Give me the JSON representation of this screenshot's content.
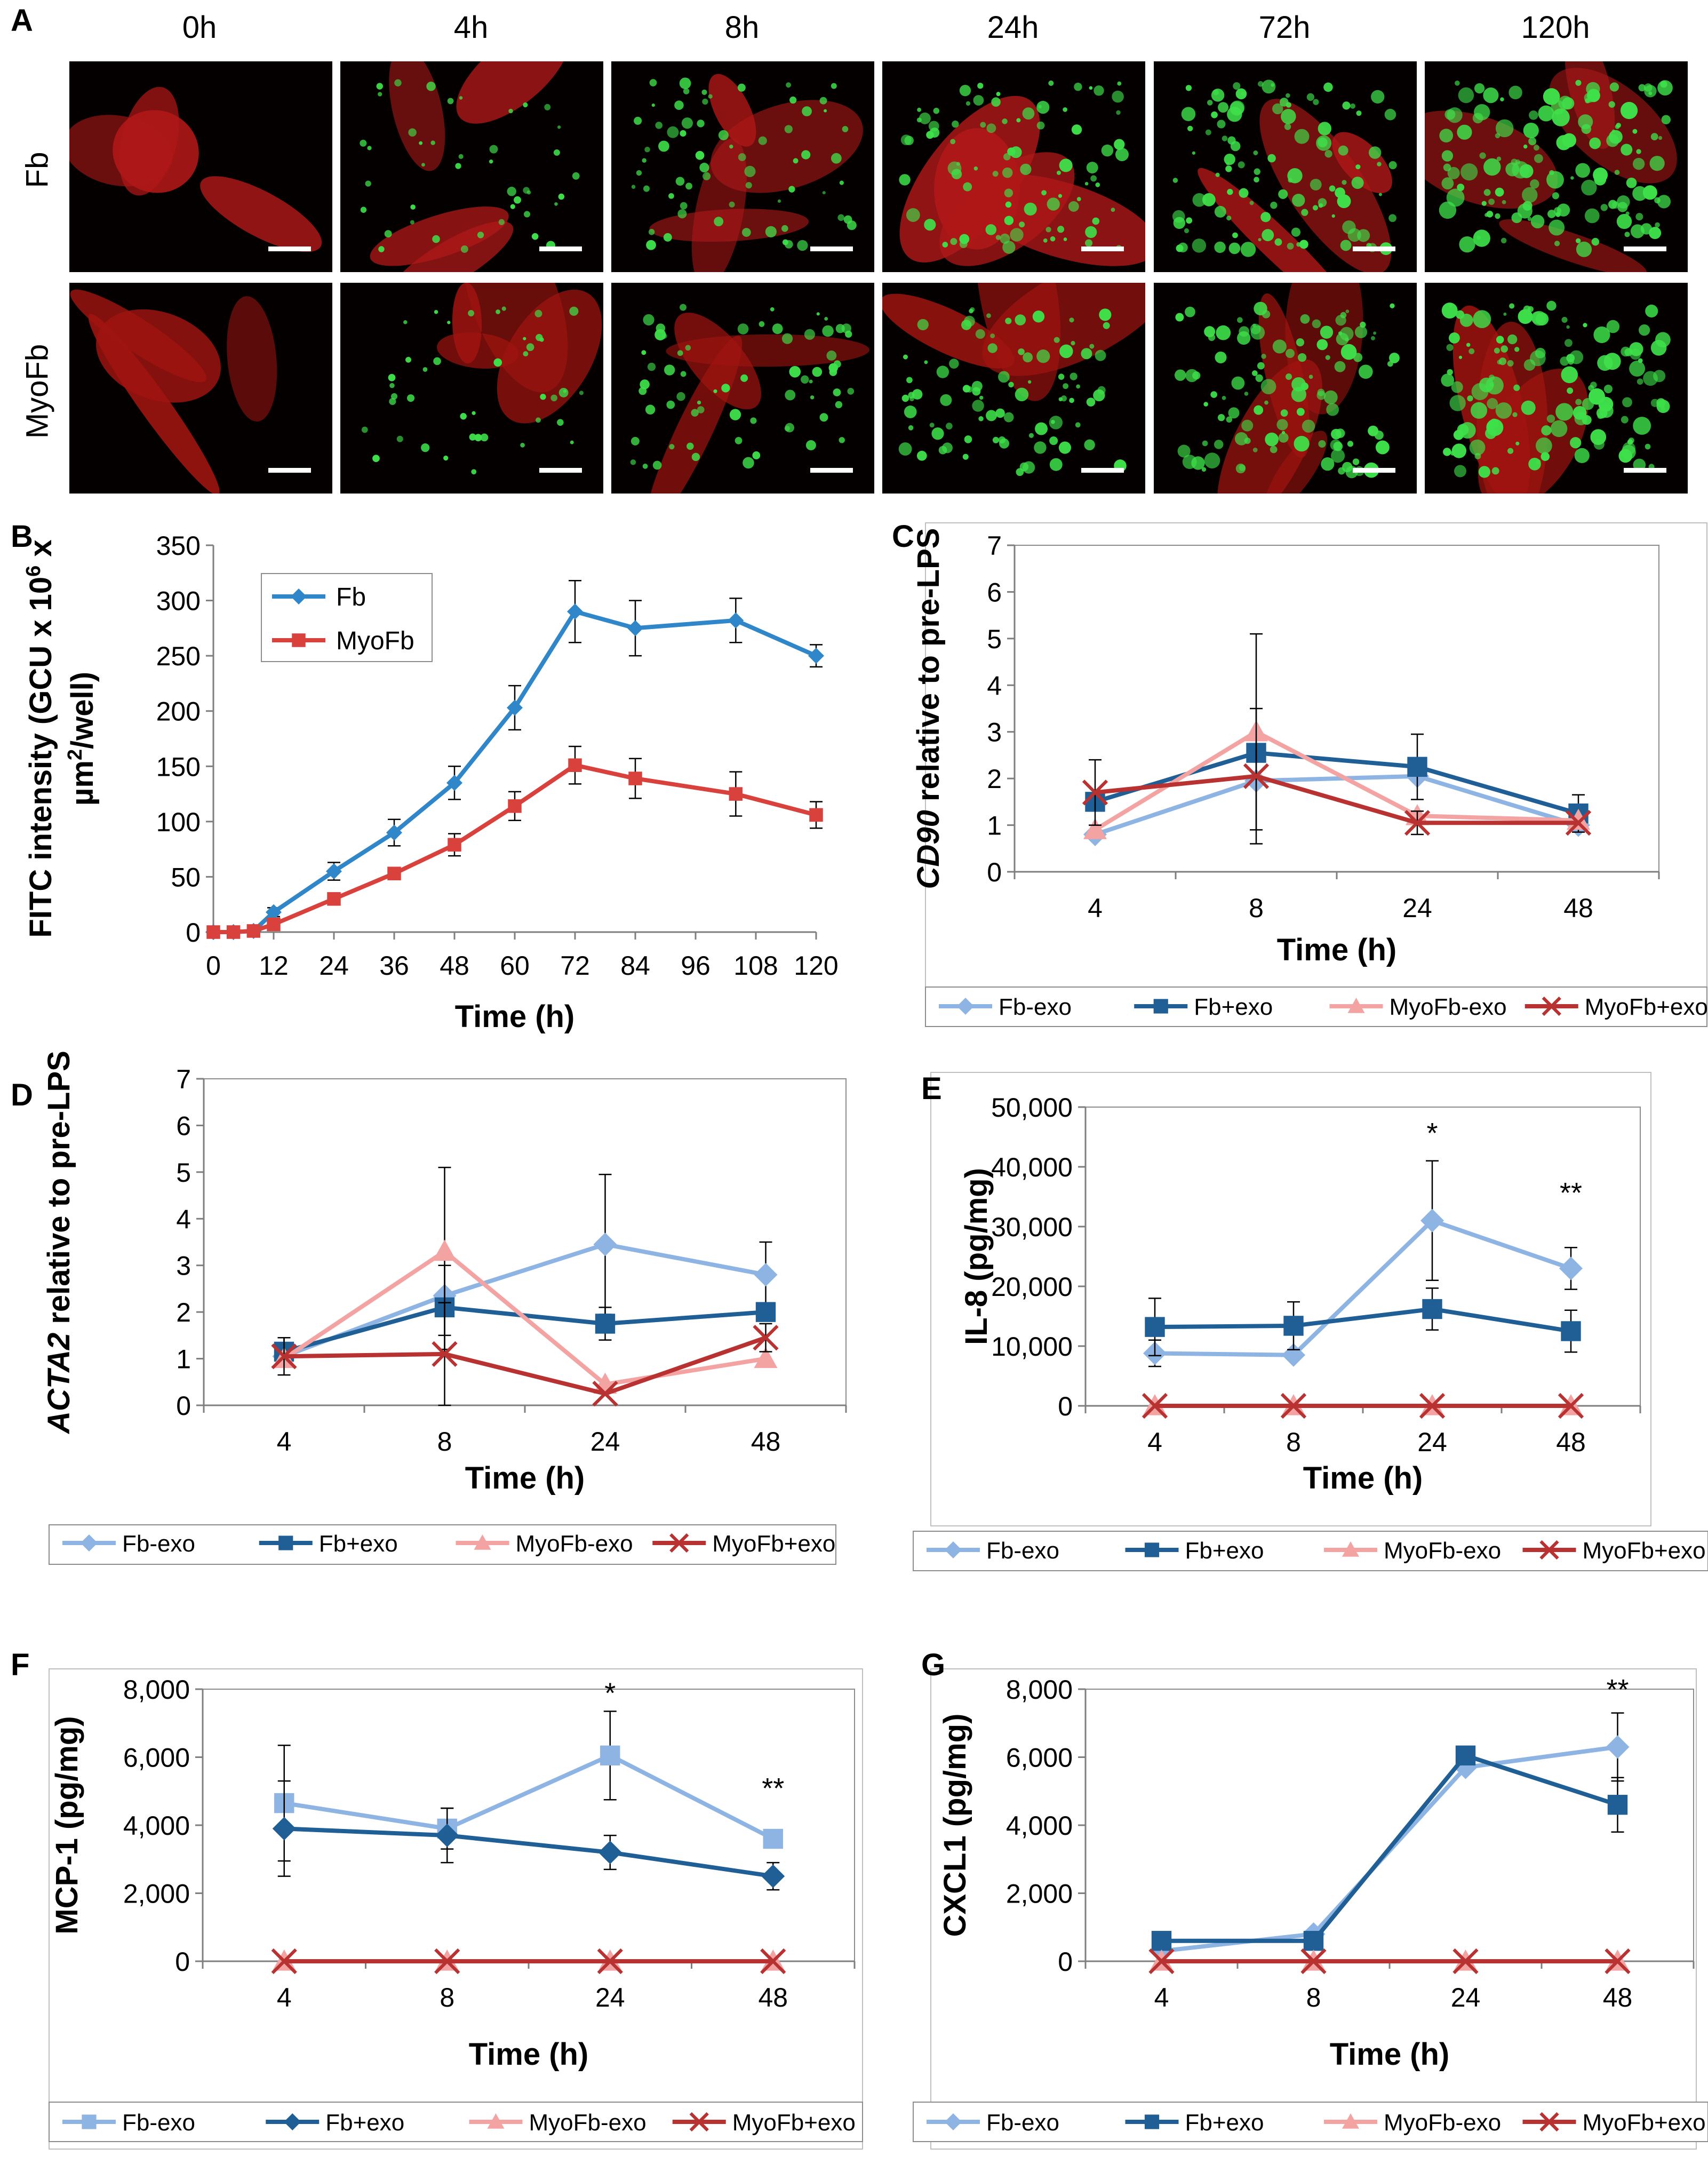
{
  "panelA": {
    "label": "A",
    "times": [
      "0h",
      "4h",
      "8h",
      "24h",
      "72h",
      "120h"
    ],
    "rows": [
      "Fb",
      "MyoFb"
    ]
  },
  "chart_data": [
    {
      "id": "B",
      "label": "B",
      "type": "line",
      "ylabel_parts": [
        "FITC intensity (GCU x 10",
        "6",
        " x",
        "µm",
        "2",
        "/well)"
      ],
      "xlabel": "Time (h)",
      "xaxis": "numeric",
      "x_ticks": [
        0,
        12,
        24,
        36,
        48,
        60,
        72,
        84,
        96,
        108,
        120
      ],
      "x_tick_labels": [
        "0",
        "12",
        "24",
        "36",
        "48",
        "60",
        "72",
        "84",
        "96",
        "108",
        "120"
      ],
      "ylim": [
        0,
        350
      ],
      "y_ticks": [
        0,
        50,
        100,
        150,
        200,
        250,
        300,
        350
      ],
      "y_tick_labels": [
        "0",
        "50",
        "100",
        "150",
        "200",
        "250",
        "300",
        "350"
      ],
      "legend_position": "inside-top-left",
      "series": [
        {
          "name": "Fb",
          "color": "#2f86c8",
          "marker": "diamond",
          "x": [
            0,
            4,
            8,
            12,
            24,
            36,
            48,
            60,
            72,
            84,
            104,
            120
          ],
          "y": [
            0,
            0,
            1,
            18,
            55,
            90,
            135,
            203,
            290,
            275,
            282,
            250
          ],
          "err": [
            0,
            0,
            2,
            4,
            8,
            12,
            15,
            20,
            28,
            25,
            20,
            10
          ]
        },
        {
          "name": "MyoFb",
          "color": "#d9413d",
          "marker": "square",
          "x": [
            0,
            4,
            8,
            12,
            24,
            36,
            48,
            60,
            72,
            84,
            104,
            120
          ],
          "y": [
            0,
            0,
            1,
            7,
            30,
            53,
            79,
            114,
            151,
            139,
            125,
            106
          ],
          "err": [
            0,
            0,
            2,
            3,
            5,
            5,
            10,
            13,
            17,
            18,
            20,
            12
          ]
        }
      ]
    },
    {
      "id": "C",
      "label": "C",
      "type": "line",
      "ylabel_parts": [
        "CD90",
        " relative to pre-LPS"
      ],
      "ylabel_italic_first": true,
      "xlabel": "Time (h)",
      "xaxis": "category",
      "categories": [
        "4",
        "8",
        "24",
        "48"
      ],
      "ylim": [
        0,
        7
      ],
      "y_ticks": [
        0,
        1,
        2,
        3,
        4,
        5,
        6,
        7
      ],
      "y_tick_labels": [
        "0",
        "1",
        "2",
        "3",
        "4",
        "5",
        "6",
        "7"
      ],
      "legend_position": "bottom",
      "series": [
        {
          "name": "Fb-exo",
          "color": "#8db4e2",
          "marker": "diamond",
          "y": [
            0.8,
            1.95,
            2.05,
            1.0
          ],
          "err": [
            0,
            0,
            0,
            0
          ]
        },
        {
          "name": "Fb+exo",
          "color": "#1f5f96",
          "marker": "square",
          "y": [
            1.5,
            2.55,
            2.25,
            1.25
          ],
          "err": [
            0,
            0,
            0.7,
            0.4
          ]
        },
        {
          "name": "MyoFb-exo",
          "color": "#f4a3a3",
          "marker": "triangle",
          "y": [
            0.9,
            3.0,
            1.2,
            1.1
          ],
          "err": [
            0,
            2.1,
            0,
            0
          ]
        },
        {
          "name": "MyoFb+exo",
          "color": "#b83232",
          "marker": "x",
          "y": [
            1.7,
            2.05,
            1.05,
            1.05
          ],
          "err": [
            0.7,
            1.45,
            0.25,
            0
          ]
        }
      ]
    },
    {
      "id": "D",
      "label": "D",
      "type": "line",
      "ylabel_parts": [
        "ACTA2",
        " relative to pre-LPS"
      ],
      "ylabel_italic_first": true,
      "xlabel": "Time (h)",
      "xaxis": "category",
      "categories": [
        "4",
        "8",
        "24",
        "48"
      ],
      "ylim": [
        0,
        7
      ],
      "y_ticks": [
        0,
        1,
        2,
        3,
        4,
        5,
        6,
        7
      ],
      "y_tick_labels": [
        "0",
        "1",
        "2",
        "3",
        "4",
        "5",
        "6",
        "7"
      ],
      "legend_position": "bottom",
      "series": [
        {
          "name": "Fb-exo",
          "color": "#8db4e2",
          "marker": "diamond",
          "y": [
            1.05,
            2.35,
            3.45,
            2.8
          ],
          "err": [
            0,
            0,
            1.5,
            0.7
          ]
        },
        {
          "name": "Fb+exo",
          "color": "#1f5f96",
          "marker": "square",
          "y": [
            1.15,
            2.1,
            1.75,
            2.0
          ],
          "err": [
            0.3,
            0.9,
            0.35,
            0
          ]
        },
        {
          "name": "MyoFb-exo",
          "color": "#f4a3a3",
          "marker": "triangle",
          "y": [
            1.0,
            3.3,
            0.45,
            1.0
          ],
          "err": [
            0,
            1.8,
            0,
            0
          ]
        },
        {
          "name": "MyoFb+exo",
          "color": "#b83232",
          "marker": "x",
          "y": [
            1.05,
            1.1,
            0.25,
            1.45
          ],
          "err": [
            0.4,
            1.1,
            0,
            0.3
          ]
        }
      ]
    },
    {
      "id": "E",
      "label": "E",
      "type": "line",
      "ylabel_parts": [
        "IL-8 (pg/mg)"
      ],
      "xlabel": "Time (h)",
      "xaxis": "category",
      "categories": [
        "4",
        "8",
        "24",
        "48"
      ],
      "ylim": [
        0,
        50000
      ],
      "y_ticks": [
        0,
        10000,
        20000,
        30000,
        40000,
        50000
      ],
      "y_tick_labels": [
        "0",
        "10,000",
        "20,000",
        "30,000",
        "40,000",
        "50,000"
      ],
      "legend_position": "bottom",
      "annotations": [
        {
          "x_index": 2,
          "y": 44000,
          "text": "*"
        },
        {
          "x_index": 3,
          "y": 34000,
          "text": "**"
        }
      ],
      "series": [
        {
          "name": "Fb-exo",
          "color": "#8db4e2",
          "marker": "diamond",
          "y": [
            8800,
            8500,
            31000,
            23000
          ],
          "err": [
            2200,
            0,
            10000,
            3500
          ]
        },
        {
          "name": "Fb+exo",
          "color": "#1f5f96",
          "marker": "square",
          "y": [
            13200,
            13400,
            16200,
            12500
          ],
          "err": [
            4800,
            4000,
            3500,
            3500
          ]
        },
        {
          "name": "MyoFb-exo",
          "color": "#f4a3a3",
          "marker": "triangle",
          "y": [
            0,
            0,
            0,
            0
          ],
          "err": [
            0,
            0,
            0,
            0
          ]
        },
        {
          "name": "MyoFb+exo",
          "color": "#b83232",
          "marker": "x",
          "y": [
            0,
            0,
            0,
            0
          ],
          "err": [
            0,
            0,
            0,
            0
          ]
        }
      ]
    },
    {
      "id": "F",
      "label": "F",
      "type": "line",
      "ylabel_parts": [
        "MCP-1 (pg/mg)"
      ],
      "xlabel": "Time (h)",
      "xaxis": "category",
      "categories": [
        "4",
        "8",
        "24",
        "48"
      ],
      "ylim": [
        0,
        8000
      ],
      "y_ticks": [
        0,
        2000,
        4000,
        6000,
        8000
      ],
      "y_tick_labels": [
        "0",
        "2,000",
        "4,000",
        "6,000",
        "8,000"
      ],
      "legend_position": "bottom",
      "annotations": [
        {
          "x_index": 2,
          "y": 7600,
          "text": "*"
        },
        {
          "x_index": 3,
          "y": 4800,
          "text": "**"
        }
      ],
      "series": [
        {
          "name": "Fb-exo",
          "color": "#8db4e2",
          "marker": "square",
          "y": [
            4650,
            3900,
            6050,
            3600
          ],
          "err": [
            1700,
            600,
            1300,
            0
          ]
        },
        {
          "name": "Fb+exo",
          "color": "#1f5f96",
          "marker": "diamond",
          "y": [
            3900,
            3700,
            3200,
            2500
          ],
          "err": [
            1400,
            800,
            500,
            400
          ]
        },
        {
          "name": "MyoFb-exo",
          "color": "#f4a3a3",
          "marker": "triangle",
          "y": [
            0,
            0,
            0,
            0
          ],
          "err": [
            0,
            0,
            0,
            0
          ]
        },
        {
          "name": "MyoFb+exo",
          "color": "#b83232",
          "marker": "x",
          "y": [
            0,
            0,
            0,
            0
          ],
          "err": [
            0,
            0,
            0,
            0
          ]
        }
      ]
    },
    {
      "id": "G",
      "label": "G",
      "type": "line",
      "ylabel_parts": [
        "CXCL1 (pg/mg)"
      ],
      "xlabel": "Time (h)",
      "xaxis": "category",
      "categories": [
        "4",
        "8",
        "24",
        "48"
      ],
      "ylim": [
        0,
        8000
      ],
      "y_ticks": [
        0,
        2000,
        4000,
        6000,
        8000
      ],
      "y_tick_labels": [
        "0",
        "2,000",
        "4,000",
        "6,000",
        "8,000"
      ],
      "legend_position": "bottom",
      "annotations": [
        {
          "x_index": 3,
          "y": 7700,
          "text": "**"
        }
      ],
      "series": [
        {
          "name": "Fb-exo",
          "color": "#8db4e2",
          "marker": "diamond",
          "y": [
            300,
            800,
            5700,
            6300
          ],
          "err": [
            0,
            0,
            0,
            1000
          ]
        },
        {
          "name": "Fb+exo",
          "color": "#1f5f96",
          "marker": "square",
          "y": [
            600,
            600,
            6050,
            4600
          ],
          "err": [
            0,
            0,
            0,
            800
          ]
        },
        {
          "name": "MyoFb-exo",
          "color": "#f4a3a3",
          "marker": "triangle",
          "y": [
            0,
            0,
            0,
            0
          ],
          "err": [
            0,
            0,
            0,
            0
          ]
        },
        {
          "name": "MyoFb+exo",
          "color": "#b83232",
          "marker": "x",
          "y": [
            0,
            0,
            0,
            0
          ],
          "err": [
            0,
            0,
            0,
            0
          ]
        }
      ]
    }
  ]
}
